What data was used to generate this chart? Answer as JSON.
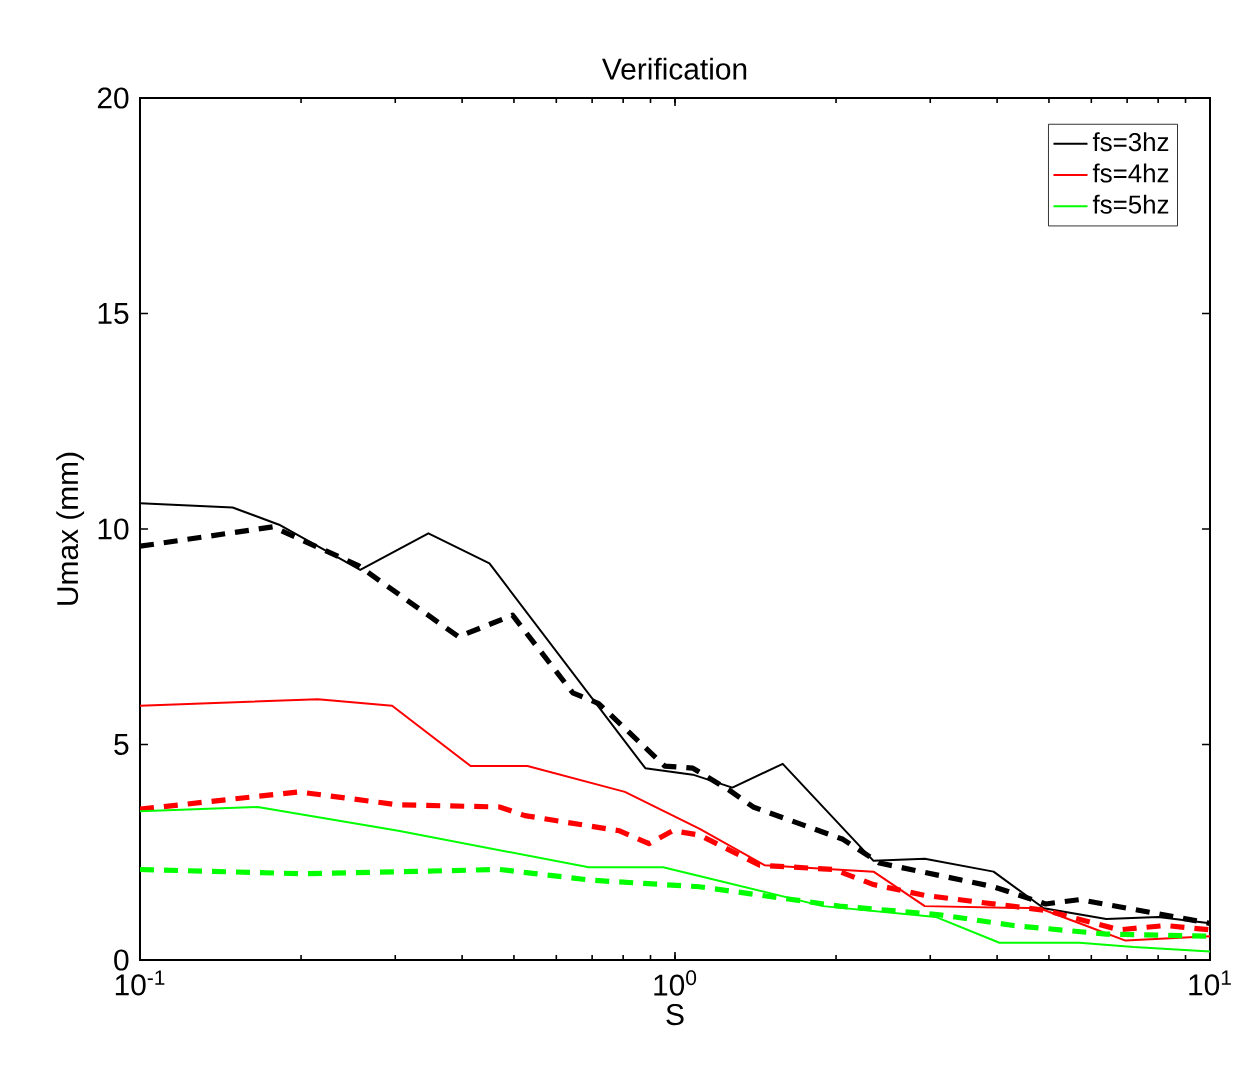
{
  "chart_data": {
    "type": "line",
    "title": "Verification",
    "xlabel": "S",
    "ylabel": "Umax (mm)",
    "log": "x",
    "xlim": [
      0.1,
      10
    ],
    "xticks": [
      {
        "value": 0.1,
        "label": "10$^{-1}$"
      },
      {
        "value": 1,
        "label": "10$^{0}$"
      },
      {
        "value": 10,
        "label": "10$^{1}$"
      }
    ],
    "ylim": [
      0,
      20
    ],
    "yticks": [
      0,
      5,
      10,
      15,
      20
    ],
    "grid": false,
    "legend": "top right",
    "series": [
      {
        "name": "fs=3hz",
        "color": "#000000",
        "line_style": "solid",
        "x": [
          0.1,
          0.149,
          0.182,
          0.258,
          0.346,
          0.45,
          0.88,
          1.08,
          1.28,
          1.59,
          2.35,
          2.93,
          3.94,
          4.89,
          6.4,
          8.0,
          10
        ],
        "values": [
          10.6,
          10.5,
          10.1,
          9.05,
          9.9,
          9.2,
          4.45,
          4.3,
          4.0,
          4.55,
          2.3,
          2.35,
          2.05,
          1.2,
          0.95,
          1.0,
          0.85
        ]
      },
      {
        "color": "#000000",
        "line_style": "dashed",
        "x": [
          0.1,
          0.177,
          0.256,
          0.394,
          0.497,
          0.644,
          0.72,
          0.957,
          1.08,
          1.26,
          1.4,
          2.06,
          2.41,
          3.94,
          4.93,
          5.7,
          7.4,
          10
        ],
        "values": [
          9.6,
          10.05,
          9.15,
          7.5,
          8.0,
          6.2,
          5.95,
          4.5,
          4.45,
          3.95,
          3.55,
          2.8,
          2.25,
          1.7,
          1.3,
          1.4,
          1.15,
          0.85
        ]
      },
      {
        "name": "fs=4hz",
        "color": "#ff0000",
        "line_style": "solid",
        "x": [
          0.1,
          0.215,
          0.296,
          0.415,
          0.53,
          0.806,
          1.11,
          1.47,
          2.35,
          2.93,
          4.8,
          5.85,
          6.95,
          10
        ],
        "values": [
          5.9,
          6.05,
          5.9,
          4.5,
          4.5,
          3.9,
          3.05,
          2.2,
          2.05,
          1.25,
          1.2,
          0.8,
          0.45,
          0.55
        ]
      },
      {
        "color": "#ff0000",
        "line_style": "dashed",
        "x": [
          0.1,
          0.198,
          0.304,
          0.47,
          0.524,
          0.786,
          0.894,
          0.99,
          1.11,
          1.44,
          1.98,
          2.35,
          2.93,
          4.93,
          6.77,
          8.25,
          10
        ],
        "values": [
          3.5,
          3.9,
          3.6,
          3.55,
          3.35,
          3.0,
          2.7,
          3.0,
          2.9,
          2.2,
          2.1,
          1.75,
          1.5,
          1.15,
          0.7,
          0.8,
          0.7
        ]
      },
      {
        "name": "fs=5hz",
        "color": "#00ff00",
        "line_style": "solid",
        "x": [
          0.1,
          0.166,
          0.304,
          0.69,
          0.95,
          1.11,
          1.89,
          3.07,
          4.04,
          5.7,
          7.2,
          10
        ],
        "values": [
          3.45,
          3.55,
          3.0,
          2.15,
          2.15,
          1.95,
          1.25,
          1.0,
          0.4,
          0.4,
          0.3,
          0.2
        ]
      },
      {
        "color": "#00ff00",
        "line_style": "dashed",
        "x": [
          0.1,
          0.203,
          0.47,
          0.7,
          1.11,
          2.03,
          3.12,
          4.29,
          6.4,
          10
        ],
        "values": [
          2.1,
          2.0,
          2.1,
          1.85,
          1.7,
          1.25,
          1.05,
          0.8,
          0.6,
          0.55
        ]
      }
    ]
  }
}
